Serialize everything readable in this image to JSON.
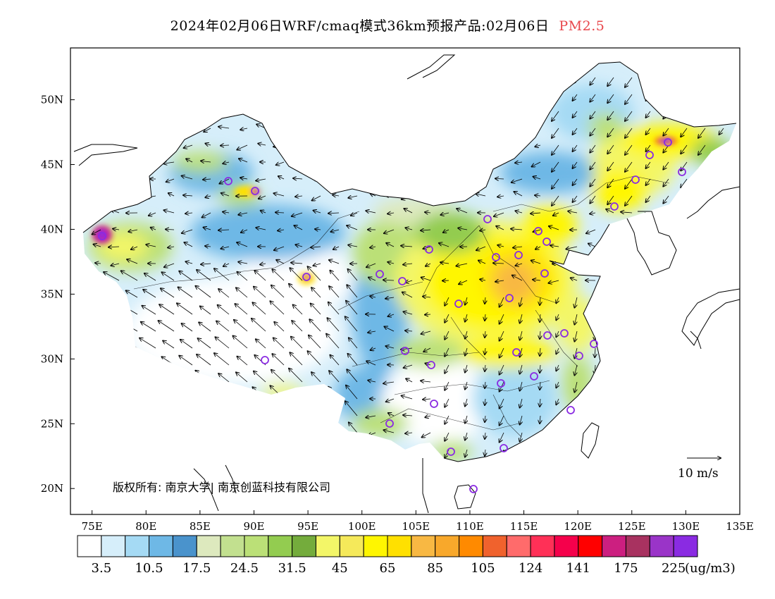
{
  "title": {
    "main": "2024年02月06日WRF/cmaq模式36km预报产品:02月06日",
    "pollutant": "PM2.5",
    "pollutant_color": "#e8474c"
  },
  "map": {
    "lon_ticks": [
      "75E",
      "80E",
      "85E",
      "90E",
      "95E",
      "100E",
      "105E",
      "110E",
      "115E",
      "120E",
      "125E",
      "130E",
      "135E"
    ],
    "lat_ticks": [
      "50N",
      "45N",
      "40N",
      "35N",
      "30N",
      "25N",
      "20N"
    ],
    "lon_range": [
      73,
      135
    ],
    "lat_range": [
      18,
      54
    ],
    "wind_reference": "10 m/s",
    "copyright": "版权所有: 南京大学| 南京创蓝科技有限公司",
    "station_marker_color": "#8a2be2"
  },
  "colorbar": {
    "colors": [
      "#ffffff",
      "#d6eefa",
      "#a5daf4",
      "#6eb8e6",
      "#4a93cc",
      "#dde9be",
      "#c2e08f",
      "#bbe077",
      "#93cc50",
      "#74ac3c",
      "#f3f668",
      "#f5e95a",
      "#fff600",
      "#ffe000",
      "#f8b843",
      "#f8a82b",
      "#ff8a00",
      "#f0622d",
      "#ff6b6b",
      "#ff3057",
      "#f5004b",
      "#ff0000",
      "#cc1f80",
      "#a83260",
      "#9a34c8",
      "#8a2be2"
    ],
    "labels": [
      "3.5",
      "10.5",
      "17.5",
      "24.5",
      "31.5",
      "45",
      "65",
      "85",
      "105",
      "124",
      "141",
      "175",
      "225"
    ],
    "unit": "(ug/m3)"
  }
}
